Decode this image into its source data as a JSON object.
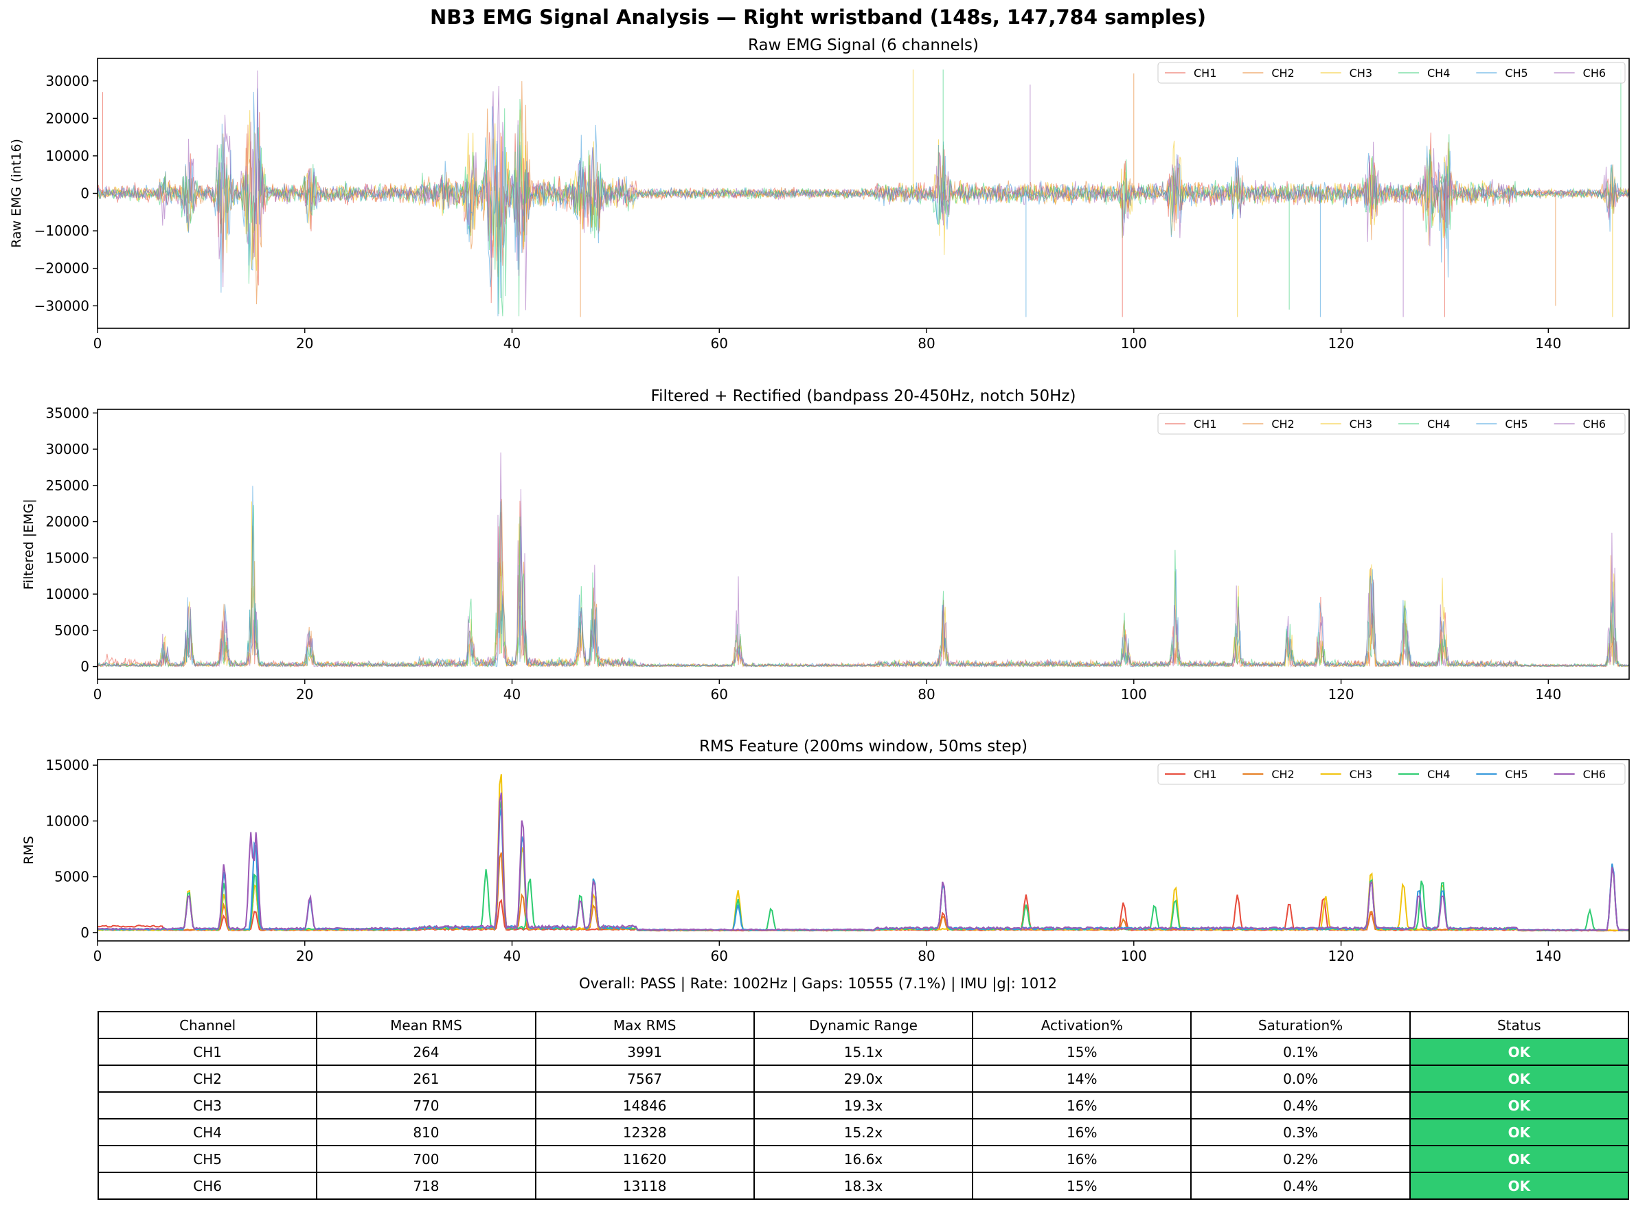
{
  "title": "NB3 EMG Signal Analysis — Right wristband (148s, 147,784 samples)",
  "colors": {
    "CH1": "#e74c3c",
    "CH2": "#e67e22",
    "CH3": "#f1c40f",
    "CH4": "#2ecc71",
    "CH5": "#3498db",
    "CH6": "#9b59b6",
    "status_ok": "#2ecc71"
  },
  "chart_data": [
    {
      "type": "line",
      "title": "Raw EMG Signal (6 channels)",
      "xlabel": "",
      "ylabel": "Raw EMG (int16)",
      "xlim": [
        0,
        147.8
      ],
      "ylim": [
        -36000,
        36000
      ],
      "xticks": [
        0,
        20,
        40,
        60,
        80,
        100,
        120,
        140
      ],
      "yticks": [
        -30000,
        -20000,
        -10000,
        0,
        10000,
        20000,
        30000
      ],
      "ytick_labels": [
        "−30000",
        "−20000",
        "−10000",
        "0",
        "10000",
        "20000",
        "30000"
      ],
      "grid": false,
      "legend": "top-right",
      "series_names": [
        "CH1",
        "CH2",
        "CH3",
        "CH4",
        "CH5",
        "CH6"
      ],
      "activity_bursts": [
        {
          "t": 6.5,
          "amp": 8000
        },
        {
          "t": 8.8,
          "amp": 12000
        },
        {
          "t": 12.2,
          "amp": 22000
        },
        {
          "t": 14.8,
          "amp": 28000
        },
        {
          "t": 15.3,
          "amp": 32767
        },
        {
          "t": 20.5,
          "amp": 10000
        },
        {
          "t": 33.5,
          "amp": 8000
        },
        {
          "t": 36.0,
          "amp": 14000
        },
        {
          "t": 38.0,
          "amp": 28000
        },
        {
          "t": 38.9,
          "amp": 32767
        },
        {
          "t": 40.9,
          "amp": 32767
        },
        {
          "t": 46.6,
          "amp": 12000
        },
        {
          "t": 47.9,
          "amp": 20000
        },
        {
          "t": 81.5,
          "amp": 14000
        },
        {
          "t": 99.2,
          "amp": 10000
        },
        {
          "t": 104.0,
          "amp": 14000
        },
        {
          "t": 110.0,
          "amp": 8000
        },
        {
          "t": 122.9,
          "amp": 12000
        },
        {
          "t": 128.5,
          "amp": 16000
        },
        {
          "t": 130.0,
          "amp": 18000
        },
        {
          "t": 146.0,
          "amp": 8000
        }
      ],
      "spikes": [
        {
          "t": 0.5,
          "amp": 27000
        },
        {
          "t": 46.6,
          "amp": -33000
        },
        {
          "t": 78.7,
          "amp": 33000
        },
        {
          "t": 81.6,
          "amp": 33000
        },
        {
          "t": 89.6,
          "amp": -33000
        },
        {
          "t": 90.0,
          "amp": 29000
        },
        {
          "t": 98.9,
          "amp": -33000
        },
        {
          "t": 100.0,
          "amp": 32000
        },
        {
          "t": 110.0,
          "amp": -33000
        },
        {
          "t": 115.0,
          "amp": -31000
        },
        {
          "t": 118.0,
          "amp": -33000
        },
        {
          "t": 126.0,
          "amp": -33000
        },
        {
          "t": 130.0,
          "amp": -33000
        },
        {
          "t": 140.7,
          "amp": -30000
        },
        {
          "t": 146.2,
          "amp": -33000
        },
        {
          "t": 147.0,
          "amp": 33000
        }
      ]
    },
    {
      "type": "line",
      "title": "Filtered + Rectified (bandpass 20-450Hz, notch 50Hz)",
      "xlabel": "",
      "ylabel": "Filtered |EMG|",
      "xlim": [
        0,
        147.8
      ],
      "ylim": [
        -1750,
        35500
      ],
      "xticks": [
        0,
        20,
        40,
        60,
        80,
        100,
        120,
        140
      ],
      "yticks": [
        0,
        5000,
        10000,
        15000,
        20000,
        25000,
        30000,
        35000
      ],
      "grid": false,
      "legend": "top-right",
      "series_names": [
        "CH1",
        "CH2",
        "CH3",
        "CH4",
        "CH5",
        "CH6"
      ],
      "peaks": [
        {
          "t": 6.5,
          "v": 6000
        },
        {
          "t": 8.8,
          "v": 12000
        },
        {
          "t": 12.2,
          "v": 14500
        },
        {
          "t": 15.0,
          "v": 22500
        },
        {
          "t": 20.5,
          "v": 7000
        },
        {
          "t": 36.0,
          "v": 9000
        },
        {
          "t": 38.9,
          "v": 33500
        },
        {
          "t": 40.9,
          "v": 28000
        },
        {
          "t": 46.6,
          "v": 12000
        },
        {
          "t": 47.9,
          "v": 14000
        },
        {
          "t": 61.8,
          "v": 9500
        },
        {
          "t": 81.6,
          "v": 13000
        },
        {
          "t": 99.2,
          "v": 8500
        },
        {
          "t": 104.0,
          "v": 11000
        },
        {
          "t": 110.0,
          "v": 11000
        },
        {
          "t": 115.0,
          "v": 9500
        },
        {
          "t": 118.0,
          "v": 10000
        },
        {
          "t": 122.9,
          "v": 18500
        },
        {
          "t": 126.2,
          "v": 12000
        },
        {
          "t": 129.8,
          "v": 12000
        },
        {
          "t": 146.2,
          "v": 17000
        }
      ]
    },
    {
      "type": "line",
      "title": "RMS Feature (200ms window, 50ms step)",
      "xlabel": "",
      "ylabel": "RMS",
      "xlim": [
        0,
        147.8
      ],
      "ylim": [
        -750,
        15500
      ],
      "xticks": [
        0,
        20,
        40,
        60,
        80,
        100,
        120,
        140
      ],
      "yticks": [
        0,
        5000,
        10000,
        15000
      ],
      "grid": false,
      "legend": "top-right",
      "series": [
        {
          "name": "CH1",
          "peaks": [
            [
              12.2,
              1500
            ],
            [
              15.2,
              2000
            ],
            [
              38.9,
              3000
            ],
            [
              81.6,
              1800
            ],
            [
              89.6,
              3400
            ],
            [
              99.0,
              2700
            ],
            [
              110.0,
              3400
            ],
            [
              115.0,
              2700
            ],
            [
              118.3,
              3200
            ],
            [
              122.9,
              1800
            ]
          ]
        },
        {
          "name": "CH2",
          "peaks": [
            [
              12.2,
              2500
            ],
            [
              15.2,
              4500
            ],
            [
              38.9,
              7500
            ],
            [
              41.0,
              3500
            ],
            [
              47.9,
              2500
            ],
            [
              81.6,
              1500
            ],
            [
              99.0,
              1200
            ],
            [
              122.9,
              2000
            ]
          ]
        },
        {
          "name": "CH3",
          "peaks": [
            [
              8.8,
              4000
            ],
            [
              12.2,
              3500
            ],
            [
              15.2,
              4500
            ],
            [
              38.9,
              14846
            ],
            [
              41.0,
              8000
            ],
            [
              47.9,
              3500
            ],
            [
              61.8,
              3800
            ],
            [
              89.6,
              2500
            ],
            [
              104.0,
              4200
            ],
            [
              118.5,
              3300
            ],
            [
              122.9,
              5600
            ],
            [
              126.0,
              4500
            ],
            [
              129.8,
              4500
            ]
          ]
        },
        {
          "name": "CH4",
          "peaks": [
            [
              8.8,
              3800
            ],
            [
              12.2,
              4500
            ],
            [
              15.2,
              5500
            ],
            [
              37.5,
              5700
            ],
            [
              38.9,
              12328
            ],
            [
              41.7,
              5000
            ],
            [
              46.6,
              3500
            ],
            [
              47.9,
              5000
            ],
            [
              61.8,
              3000
            ],
            [
              65.0,
              2200
            ],
            [
              81.6,
              4500
            ],
            [
              89.6,
              2500
            ],
            [
              102.0,
              2500
            ],
            [
              104.0,
              3000
            ],
            [
              122.9,
              5000
            ],
            [
              127.8,
              4800
            ],
            [
              129.8,
              4800
            ],
            [
              144.0,
              2000
            ],
            [
              146.2,
              6000
            ]
          ]
        },
        {
          "name": "CH5",
          "peaks": [
            [
              8.8,
              3500
            ],
            [
              12.2,
              5500
            ],
            [
              15.2,
              8500
            ],
            [
              20.5,
              3000
            ],
            [
              38.9,
              11620
            ],
            [
              41.0,
              9000
            ],
            [
              46.6,
              3000
            ],
            [
              47.9,
              5000
            ],
            [
              61.8,
              2500
            ],
            [
              81.6,
              4500
            ],
            [
              122.9,
              4800
            ],
            [
              127.5,
              4000
            ],
            [
              129.8,
              4000
            ],
            [
              146.2,
              6300
            ]
          ]
        },
        {
          "name": "CH6",
          "peaks": [
            [
              8.8,
              3500
            ],
            [
              12.2,
              6200
            ],
            [
              14.8,
              9000
            ],
            [
              15.3,
              9000
            ],
            [
              20.5,
              3300
            ],
            [
              38.9,
              13118
            ],
            [
              41.0,
              10500
            ],
            [
              46.6,
              3000
            ],
            [
              47.9,
              4800
            ],
            [
              81.6,
              4700
            ],
            [
              122.9,
              4800
            ],
            [
              127.5,
              3500
            ],
            [
              129.8,
              3500
            ],
            [
              146.2,
              6000
            ]
          ]
        }
      ]
    }
  ],
  "overall": "Overall: PASS | Rate: 1002Hz | Gaps: 10555 (7.1%) | IMU |g|: 1012",
  "table": {
    "headers": [
      "Channel",
      "Mean RMS",
      "Max RMS",
      "Dynamic Range",
      "Activation%",
      "Saturation%",
      "Status"
    ],
    "rows": [
      [
        "CH1",
        "264",
        "3991",
        "15.1x",
        "15%",
        "0.1%",
        "OK"
      ],
      [
        "CH2",
        "261",
        "7567",
        "29.0x",
        "14%",
        "0.0%",
        "OK"
      ],
      [
        "CH3",
        "770",
        "14846",
        "19.3x",
        "16%",
        "0.4%",
        "OK"
      ],
      [
        "CH4",
        "810",
        "12328",
        "15.2x",
        "16%",
        "0.3%",
        "OK"
      ],
      [
        "CH5",
        "700",
        "11620",
        "16.6x",
        "16%",
        "0.2%",
        "OK"
      ],
      [
        "CH6",
        "718",
        "13118",
        "18.3x",
        "15%",
        "0.4%",
        "OK"
      ]
    ]
  }
}
